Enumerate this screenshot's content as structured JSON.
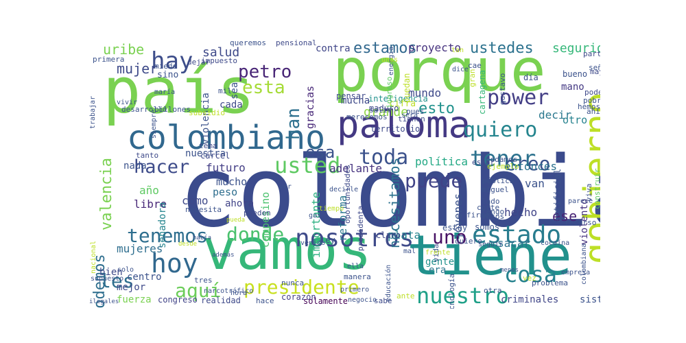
{
  "words": [
    {
      "text": "colombia",
      "color": "#3b4b8c"
    },
    {
      "text": "país",
      "color": "#7ad151"
    },
    {
      "text": "porque",
      "color": "#7ad151"
    },
    {
      "text": "vamos",
      "color": "#35b779"
    },
    {
      "text": "tiene",
      "color": "#21918c"
    },
    {
      "text": "paloma",
      "color": "#443983"
    },
    {
      "text": "gobierno",
      "color": "#bddf26"
    },
    {
      "text": "colombiano",
      "color": "#31688e"
    },
    {
      "text": "hoy",
      "color": "#31688e"
    },
    {
      "text": "presidente",
      "color": "#c8e020"
    },
    {
      "text": "nosotros",
      "color": "#3e4a89"
    },
    {
      "text": "tenemos",
      "color": "#2e6e8e"
    },
    {
      "text": "donde",
      "color": "#4ac16d"
    },
    {
      "text": "estado",
      "color": "#287c8e"
    },
    {
      "text": "nuestro",
      "color": "#1fa088"
    },
    {
      "text": "usted",
      "color": "#5ec962"
    },
    {
      "text": "hacer",
      "color": "#3e4c8a"
    },
    {
      "text": "tener",
      "color": "#2c728e"
    },
    {
      "text": "quiero",
      "color": "#25858e"
    },
    {
      "text": "creo",
      "color": "#3b528b"
    },
    {
      "text": "toda",
      "color": "#3b518b"
    },
    {
      "text": "puede",
      "color": "#404387"
    },
    {
      "text": "uno",
      "color": "#471164"
    },
    {
      "text": "cosa",
      "color": "#26828e"
    },
    {
      "text": "aquí",
      "color": "#6ccd5a"
    },
    {
      "text": "les",
      "color": "#2e6f8e"
    },
    {
      "text": "hay",
      "color": "#3d4d8a"
    },
    {
      "text": "petro",
      "color": "#482576"
    },
    {
      "text": "esta",
      "color": "#a5db36"
    },
    {
      "text": "esa",
      "color": "#3b528b"
    },
    {
      "text": "esto",
      "color": "#21918c"
    },
    {
      "text": "power",
      "color": "#433e85"
    },
    {
      "text": "estamos",
      "color": "#31688e"
    },
    {
      "text": "ustedes",
      "color": "#2c728e"
    },
    {
      "text": "mujer",
      "color": "#3e4a89"
    },
    {
      "text": "uribe",
      "color": "#7ad151"
    },
    {
      "text": "han",
      "color": "#2d708e"
    },
    {
      "text": "grande",
      "color": "#8fd744"
    },
    {
      "text": "podemos",
      "color": "#2e6e8e"
    },
    {
      "text": "valencia",
      "color": "#7ad151"
    },
    {
      "text": "necesitamos",
      "color": "#2c728e"
    },
    {
      "text": "salud",
      "color": "#3e4989"
    },
    {
      "text": "seguridad",
      "color": "#35b779"
    },
    {
      "text": "proyecto",
      "color": "#46327e"
    },
    {
      "text": "contra",
      "color": "#404688"
    },
    {
      "text": "gracias",
      "color": "#482878"
    },
    {
      "text": "reforma",
      "color": "#2a768e"
    },
    {
      "text": "adelante",
      "color": "#46337f"
    },
    {
      "text": "importante",
      "color": "#29af7f"
    },
    {
      "text": "mundo",
      "color": "#3e4989"
    },
    {
      "text": "decir",
      "color": "#2a788e"
    },
    {
      "text": "otro",
      "color": "#26828e"
    },
    {
      "text": "mano",
      "color": "#443983"
    },
    {
      "text": "bueno",
      "color": "#3b528b"
    },
    {
      "text": "democrático",
      "color": "#5ec962"
    },
    {
      "text": "entonces",
      "color": "#2c728e"
    },
    {
      "text": "política",
      "color": "#22a884"
    },
    {
      "text": "van",
      "color": "#3b528b"
    },
    {
      "text": "hecho",
      "color": "#404387"
    },
    {
      "text": "ese",
      "color": "#482475"
    },
    {
      "text": "jóvenes",
      "color": "#3b528b"
    },
    {
      "text": "violento",
      "color": "#46337f"
    },
    {
      "text": "plata",
      "color": "#25858e"
    },
    {
      "text": "gente",
      "color": "#21918c"
    },
    {
      "text": "sacar",
      "color": "#2c728e"
    },
    {
      "text": "era",
      "color": "#2a788e"
    },
    {
      "text": "sistema",
      "color": "#3b528b"
    },
    {
      "text": "criminales",
      "color": "#404688"
    },
    {
      "text": "libre",
      "color": "#482878"
    },
    {
      "text": "cómo",
      "color": "#3e4989"
    },
    {
      "text": "futuro",
      "color": "#433e85"
    },
    {
      "text": "mucho",
      "color": "#3b528b"
    },
    {
      "text": "peso",
      "color": "#2e6e8e"
    },
    {
      "text": "ahora",
      "color": "#404387"
    },
    {
      "text": "campesino",
      "color": "#4ac16d"
    },
    {
      "text": "nuestra",
      "color": "#3b528b"
    },
    {
      "text": "nada",
      "color": "#3b528b"
    },
    {
      "text": "año",
      "color": "#5ec962"
    },
    {
      "text": "senadora",
      "color": "#25858e"
    },
    {
      "text": "mujeres",
      "color": "#2e6e8e"
    },
    {
      "text": "bien",
      "color": "#3e4989"
    },
    {
      "text": "centro",
      "color": "#3b528b"
    },
    {
      "text": "mejor",
      "color": "#3e4989"
    },
    {
      "text": "fuerza",
      "color": "#7ad151"
    },
    {
      "text": "congreso",
      "color": "#404387"
    },
    {
      "text": "realidad",
      "color": "#3e4989"
    },
    {
      "text": "hace",
      "color": "#3b528b"
    },
    {
      "text": "corazón",
      "color": "#433e85"
    },
    {
      "text": "solamente",
      "color": "#440154"
    },
    {
      "text": "sabe",
      "color": "#3e4a89"
    },
    {
      "text": "cada",
      "color": "#3e4989"
    },
    {
      "text": "sea",
      "color": "#3b528b"
    },
    {
      "text": "violencia",
      "color": "#3b528b"
    },
    {
      "text": "sino",
      "color": "#3b528b"
    },
    {
      "text": "mucha",
      "color": "#3e4989"
    },
    {
      "text": "inteligencia",
      "color": "#21918c"
    },
    {
      "text": "maduro",
      "color": "#3e4989"
    },
    {
      "text": "tienen",
      "color": "#3e4989"
    },
    {
      "text": "territorio",
      "color": "#3e4989"
    },
    {
      "text": "pensar",
      "color": "#3e4989"
    },
    {
      "text": "cifra",
      "color": "#bddf26"
    },
    {
      "text": "puedan",
      "color": "#bddf26"
    },
    {
      "text": "ingreso",
      "color": "#5ec962"
    },
    {
      "text": "pueden",
      "color": "#3e4989"
    },
    {
      "text": "oportunidades",
      "color": "#3e4989"
    },
    {
      "text": "presidenta",
      "color": "#3e4989"
    },
    {
      "text": "claro",
      "color": "#3e4989"
    },
    {
      "text": "ley",
      "color": "#3b528b"
    },
    {
      "text": "cárcel",
      "color": "#3e4989"
    },
    {
      "text": "tanto",
      "color": "#3e4989"
    },
    {
      "text": "desarrollo",
      "color": "#3b528b"
    },
    {
      "text": "billones",
      "color": "#3b528b"
    },
    {
      "text": "subsidio",
      "color": "#bddf26"
    },
    {
      "text": "tema",
      "color": "#3e4989"
    },
    {
      "text": "impuesto",
      "color": "#3e4989"
    },
    {
      "text": "queremos",
      "color": "#3b528b"
    },
    {
      "text": "pensional",
      "color": "#3e4989"
    },
    {
      "text": "dejar",
      "color": "#3e4989"
    },
    {
      "text": "miedo",
      "color": "#3b528b"
    },
    {
      "text": "primera",
      "color": "#3b528b"
    },
    {
      "text": "mil",
      "color": "#3b528b"
    },
    {
      "text": "partido",
      "color": "#3e4989"
    },
    {
      "text": "señor",
      "color": "#3b528b"
    },
    {
      "text": "mayor",
      "color": "#3e4989"
    },
    {
      "text": "poder",
      "color": "#3e4989"
    },
    {
      "text": "hemos",
      "color": "#3b528b"
    },
    {
      "text": "pobre",
      "color": "#3b528b"
    },
    {
      "text": "ahí",
      "color": "#3b528b"
    },
    {
      "text": "día",
      "color": "#3b528b"
    },
    {
      "text": "gustavo",
      "color": "#3b528b"
    },
    {
      "text": "cartagena",
      "color": "#35b779"
    },
    {
      "text": "gran",
      "color": "#bddf26"
    },
    {
      "text": "cae",
      "color": "#3b528b"
    },
    {
      "text": "dice",
      "color": "#3b528b"
    },
    {
      "text": "pues",
      "color": "#3b528b"
    },
    {
      "text": "merecemos",
      "color": "#3b528b"
    },
    {
      "text": "primero",
      "color": "#3b528b"
    },
    {
      "text": "será",
      "color": "#3b528b"
    },
    {
      "text": "salir",
      "color": "#3b528b"
    },
    {
      "text": "estar",
      "color": "#3e4989"
    },
    {
      "text": "podamos",
      "color": "#3b528b"
    },
    {
      "text": "ejemplo",
      "color": "#bddf26"
    },
    {
      "text": "pública",
      "color": "#3b528b"
    },
    {
      "text": "miguel",
      "color": "#3b528b"
    },
    {
      "text": "lado",
      "color": "#3b528b"
    },
    {
      "text": "artificial",
      "color": "#3b528b"
    },
    {
      "text": "viva",
      "color": "#3b528b"
    },
    {
      "text": "construir",
      "color": "#5ec962"
    },
    {
      "text": "recurso",
      "color": "#3b528b"
    },
    {
      "text": "tengo",
      "color": "#3b528b"
    },
    {
      "text": "corte",
      "color": "#3b528b"
    },
    {
      "text": "votos",
      "color": "#3b528b"
    },
    {
      "text": "firme",
      "color": "#3b528b"
    },
    {
      "text": "estoy",
      "color": "#3b528b"
    },
    {
      "text": "somos",
      "color": "#3b528b"
    },
    {
      "text": "quiere",
      "color": "#3b528b"
    },
    {
      "text": "seguir",
      "color": "#3b528b"
    },
    {
      "text": "cocaína",
      "color": "#3b528b"
    },
    {
      "text": "empresa",
      "color": "#3b528b"
    },
    {
      "text": "menos",
      "color": "#3b528b"
    },
    {
      "text": "problema",
      "color": "#3b528b"
    },
    {
      "text": "otra",
      "color": "#3b528b"
    },
    {
      "text": "tecnología",
      "color": "#3b528b"
    },
    {
      "text": "vida",
      "color": "#3b528b"
    },
    {
      "text": "educación",
      "color": "#3b528b"
    },
    {
      "text": "manera",
      "color": "#3b528b"
    },
    {
      "text": "ella",
      "color": "#3b528b"
    },
    {
      "text": "venido",
      "color": "#3b528b"
    },
    {
      "text": "había",
      "color": "#3b528b"
    },
    {
      "text": "además",
      "color": "#3b528b"
    },
    {
      "text": "necesita",
      "color": "#3b528b"
    },
    {
      "text": "nacional",
      "color": "#bddf26"
    },
    {
      "text": "supuesto",
      "color": "#3b528b"
    },
    {
      "text": "solo",
      "color": "#3b528b"
    },
    {
      "text": "tres",
      "color": "#3b528b"
    },
    {
      "text": "narcotráfico",
      "color": "#3b528b"
    },
    {
      "text": "hora",
      "color": "#3b528b"
    },
    {
      "text": "nunca",
      "color": "#3b528b"
    },
    {
      "text": "negocio",
      "color": "#3b528b"
    },
    {
      "text": "ante",
      "color": "#bddf26"
    },
    {
      "text": "vez",
      "color": "#bddf26"
    },
    {
      "text": "ilegales",
      "color": "#3b528b"
    },
    {
      "text": "colombiana",
      "color": "#3b528b"
    },
    {
      "text": "trabajar",
      "color": "#3b528b"
    },
    {
      "text": "maría",
      "color": "#3b528b"
    },
    {
      "text": "siempre",
      "color": "#3b528b"
    },
    {
      "text": "vivir",
      "color": "#3b528b"
    },
    {
      "text": "energía",
      "color": "#3b528b"
    },
    {
      "text": "gas",
      "color": "#3b528b"
    },
    {
      "text": "mal",
      "color": "#3b528b"
    },
    {
      "text": "frente",
      "color": "#bddf26"
    },
    {
      "text": "parece",
      "color": "#3b528b"
    },
    {
      "text": "decirle",
      "color": "#3b528b"
    },
    {
      "text": "ver",
      "color": "#3b528b"
    },
    {
      "text": "tiempo",
      "color": "#bddf26"
    },
    {
      "text": "unas",
      "color": "#bddf26"
    },
    {
      "text": "tan",
      "color": "#bddf26"
    },
    {
      "text": "historia",
      "color": "#bddf26"
    },
    {
      "text": "pueda",
      "color": "#bddf26"
    },
    {
      "text": "desde",
      "color": "#bddf26"
    }
  ]
}
